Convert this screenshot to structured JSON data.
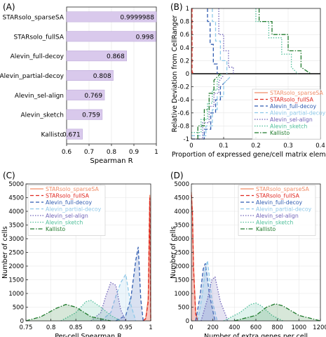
{
  "colors": {
    "bar_fill": "#d9c9ec",
    "bar_stroke": "#b8a4d6",
    "STARsolo_sparseSA": "#f08c68",
    "STARsolo_fullSA": "#e02820",
    "Alevin_full-decoy": "#2f5bb0",
    "Alevin_partial-decoy": "#8ec8e8",
    "Alevin_sel-align": "#6f62b8",
    "Alevin_sketch": "#4fbf9a",
    "Kallisto": "#1f7a2c"
  },
  "chart_data": [
    {
      "panel": "(A)",
      "type": "bar",
      "orientation": "horizontal",
      "categories": [
        "STARsolo_sparseSA",
        "STARsolo_fullSA",
        "Alevin_full-decoy",
        "Alevin_partial-decoy",
        "Alevin_sel-align",
        "Alevin_sketch",
        "Kallisto"
      ],
      "values": [
        0.9999988,
        0.998,
        0.868,
        0.808,
        0.769,
        0.759,
        0.671
      ],
      "value_labels": [
        "0.9999988",
        "0.998",
        "0.868",
        "0.808",
        "0.769",
        "0.759",
        "0.671"
      ],
      "xlabel": "Spearman R",
      "xlim": [
        0.6,
        1
      ],
      "xticks": [
        "0.6",
        "0.7",
        "0.8",
        "0.9",
        "1"
      ]
    },
    {
      "panel": "(B)",
      "type": "line",
      "xlabel": "Proportion of expressed gene/cell matrix elements",
      "ylabel": "Relative Deviation from CellRanger",
      "xlim": [
        0,
        0.4
      ],
      "ylim": [
        -1,
        1
      ],
      "xticks": [
        "0",
        "0.1",
        "0.2",
        "0.3",
        "0.4"
      ],
      "yticks": [
        "-1",
        "-0.8",
        "-0.6",
        "-0.4",
        "-0.2",
        "0",
        "0.2",
        "0.4",
        "0.6",
        "0.8",
        "1"
      ],
      "legend": [
        "STARsolo_sparseSA",
        "STARsolo_fullSA",
        "Alevin_full-decoy",
        "Alevin_partial-decoy",
        "Alevin_sel-align",
        "Alevin_sketch",
        "Kallisto"
      ],
      "legend_position": "bottom-right",
      "grid": true,
      "series": [
        {
          "name": "STARsolo_sparseSA",
          "style": "solid",
          "x": [
            0.001,
            0.001,
            0.003,
            0.003,
            0.004
          ],
          "y": [
            1,
            0.02,
            0.02,
            0,
            0
          ]
        },
        {
          "name": "STARsolo_fullSA",
          "style": "dashed",
          "x": [
            0.002,
            0.002,
            0.004,
            0.004
          ],
          "y": [
            1,
            0.02,
            0.02,
            0
          ]
        },
        {
          "name": "Alevin_full-decoy",
          "style": "dashed",
          "x": [
            0.05,
            0.05,
            0.058,
            0.058,
            0.068,
            0.068,
            0.08,
            0.08
          ],
          "y": [
            1,
            0.8,
            0.8,
            0.45,
            0.45,
            0.15,
            0.15,
            0
          ]
        },
        {
          "name": "Alevin_partial-decoy",
          "style": "dashed",
          "x": [
            0.065,
            0.065,
            0.075,
            0.075,
            0.09,
            0.09,
            0.11,
            0.11
          ],
          "y": [
            1,
            0.8,
            0.8,
            0.5,
            0.5,
            0.2,
            0.2,
            0
          ]
        },
        {
          "name": "Alevin_sel-align",
          "style": "dotted",
          "x": [
            0.085,
            0.085,
            0.1,
            0.1,
            0.115,
            0.115,
            0.13,
            0.13
          ],
          "y": [
            1,
            0.6,
            0.6,
            0.35,
            0.35,
            0.1,
            0.1,
            0
          ]
        },
        {
          "name": "Alevin_sketch",
          "style": "dotted",
          "x": [
            0.2,
            0.2,
            0.24,
            0.24,
            0.28,
            0.28,
            0.31,
            0.31,
            0.33
          ],
          "y": [
            1,
            0.8,
            0.8,
            0.55,
            0.55,
            0.3,
            0.3,
            0.1,
            0
          ]
        },
        {
          "name": "Kallisto",
          "style": "dashdot",
          "x": [
            0.21,
            0.21,
            0.25,
            0.25,
            0.3,
            0.3,
            0.34,
            0.34,
            0.37
          ],
          "y": [
            1,
            0.8,
            0.8,
            0.6,
            0.6,
            0.35,
            0.35,
            0.1,
            0
          ]
        },
        {
          "name": "Alevin_full-decoy",
          "style": "dashed",
          "x": [
            0,
            0.04,
            0.04,
            0.06,
            0.06,
            0.075,
            0.075,
            0.09,
            0.09,
            0.11
          ],
          "y": [
            -1,
            -1,
            -0.85,
            -0.85,
            -0.6,
            -0.6,
            -0.4,
            -0.4,
            -0.2,
            -0.1
          ]
        },
        {
          "name": "Alevin_partial-decoy",
          "style": "dashed",
          "x": [
            0,
            0.045,
            0.045,
            0.065,
            0.065,
            0.08,
            0.08,
            0.1,
            0.1,
            0.12
          ],
          "y": [
            -0.95,
            -0.95,
            -0.8,
            -0.8,
            -0.55,
            -0.55,
            -0.35,
            -0.35,
            -0.15,
            -0.05
          ]
        },
        {
          "name": "Alevin_sel-align",
          "style": "dotted",
          "x": [
            0,
            0.035,
            0.035,
            0.055,
            0.055,
            0.07,
            0.07,
            0.085,
            0.085,
            0.1
          ],
          "y": [
            -1,
            -1,
            -0.75,
            -0.75,
            -0.5,
            -0.5,
            -0.3,
            -0.3,
            -0.12,
            -0.02
          ]
        },
        {
          "name": "Alevin_sketch",
          "style": "dotted",
          "x": [
            0,
            0.03,
            0.03,
            0.05,
            0.05,
            0.065,
            0.065,
            0.08,
            0.08,
            0.095
          ],
          "y": [
            -0.9,
            -0.9,
            -0.7,
            -0.7,
            -0.45,
            -0.45,
            -0.25,
            -0.25,
            -0.1,
            0
          ]
        },
        {
          "name": "Kallisto",
          "style": "dashdot",
          "x": [
            0.02,
            0.02,
            0.04,
            0.04,
            0.055,
            0.055,
            0.07,
            0.07,
            0.09
          ],
          "y": [
            -1,
            -0.8,
            -0.8,
            -0.55,
            -0.55,
            -0.3,
            -0.3,
            -0.1,
            0
          ]
        }
      ]
    },
    {
      "panel": "(C)",
      "type": "area",
      "xlabel": "Per-cell Spearman R",
      "ylabel": "Number of cells",
      "xlim": [
        0.75,
        1
      ],
      "ylim": [
        0,
        5000
      ],
      "xticks": [
        "0.75",
        "0.8",
        "0.85",
        "0.9",
        "0.95",
        "1"
      ],
      "yticks": [
        "0",
        "500",
        "1000",
        "1500",
        "2000",
        "2500",
        "3000",
        "3500",
        "4000",
        "4500",
        "5000"
      ],
      "legend": [
        "STARsolo_sparseSA",
        "STARsolo_fullSA",
        "Alevin_full-decoy",
        "Alevin_partial-decoy",
        "Alevin_sel-align",
        "Alevin_sketch",
        "Kallisto"
      ],
      "legend_position": "top-left",
      "grid": true,
      "series": [
        {
          "name": "STARsolo_sparseSA",
          "style": "solid",
          "x": [
            0.985,
            0.99,
            0.995,
            0.998,
            1.0
          ],
          "y": [
            0,
            100,
            800,
            4600,
            0
          ]
        },
        {
          "name": "STARsolo_fullSA",
          "style": "dashed",
          "x": [
            0.985,
            0.99,
            0.995,
            0.998,
            1.0
          ],
          "y": [
            0,
            80,
            700,
            4500,
            0
          ]
        },
        {
          "name": "Alevin_full-decoy",
          "style": "dashed",
          "x": [
            0.93,
            0.95,
            0.96,
            0.97,
            0.975,
            0.98,
            0.985
          ],
          "y": [
            0,
            200,
            800,
            2200,
            2700,
            800,
            0
          ]
        },
        {
          "name": "Alevin_partial-decoy",
          "style": "dashed",
          "x": [
            0.9,
            0.92,
            0.93,
            0.94,
            0.95,
            0.96,
            0.97
          ],
          "y": [
            0,
            300,
            900,
            1400,
            1700,
            600,
            0
          ]
        },
        {
          "name": "Alevin_sel-align",
          "style": "dotted",
          "x": [
            0.88,
            0.9,
            0.91,
            0.92,
            0.93,
            0.94,
            0.95
          ],
          "y": [
            0,
            300,
            900,
            1400,
            1300,
            400,
            0
          ]
        },
        {
          "name": "Alevin_sketch",
          "style": "dotted",
          "x": [
            0.82,
            0.85,
            0.87,
            0.88,
            0.9,
            0.92,
            0.94
          ],
          "y": [
            0,
            300,
            700,
            750,
            500,
            200,
            0
          ]
        },
        {
          "name": "Kallisto",
          "style": "dashdot",
          "x": [
            0.75,
            0.78,
            0.81,
            0.83,
            0.85,
            0.88,
            0.92
          ],
          "y": [
            0,
            150,
            450,
            600,
            500,
            150,
            0
          ]
        }
      ]
    },
    {
      "panel": "(D)",
      "type": "area",
      "xlabel": "Number of extra genes per cell",
      "ylabel": "Number of cells",
      "xlim": [
        0,
        1200
      ],
      "ylim": [
        0,
        5000
      ],
      "xticks": [
        "0",
        "200",
        "400",
        "600",
        "800",
        "1000",
        "1200"
      ],
      "yticks": [
        "0",
        "500",
        "1000",
        "1500",
        "2000",
        "2500",
        "3000",
        "3500",
        "4000",
        "4500",
        "5000"
      ],
      "legend": [
        "STARsolo_sparseSA",
        "STARsolo_fullSA",
        "Alevin_full-decoy",
        "Alevin_partial-decoy",
        "Alevin_sel-align",
        "Alevin_sketch",
        "Kallisto"
      ],
      "legend_position": "top-right",
      "grid": true,
      "series": [
        {
          "name": "STARsolo_sparseSA",
          "style": "solid",
          "x": [
            0,
            10,
            20,
            40,
            60
          ],
          "y": [
            4700,
            4000,
            2000,
            300,
            0
          ]
        },
        {
          "name": "STARsolo_fullSA",
          "style": "dashed",
          "x": [
            0,
            10,
            20,
            40,
            60
          ],
          "y": [
            4600,
            3900,
            1900,
            250,
            0
          ]
        },
        {
          "name": "Alevin_full-decoy",
          "style": "dashed",
          "x": [
            40,
            80,
            110,
            130,
            170,
            220
          ],
          "y": [
            0,
            900,
            1900,
            2100,
            900,
            0
          ]
        },
        {
          "name": "Alevin_partial-decoy",
          "style": "dashed",
          "x": [
            60,
            100,
            130,
            150,
            190,
            240
          ],
          "y": [
            0,
            900,
            1900,
            2200,
            800,
            0
          ]
        },
        {
          "name": "Alevin_sel-align",
          "style": "dotted",
          "x": [
            90,
            150,
            190,
            220,
            270,
            340
          ],
          "y": [
            0,
            800,
            1500,
            1600,
            700,
            0
          ]
        },
        {
          "name": "Alevin_sketch",
          "style": "dotted",
          "x": [
            300,
            450,
            550,
            600,
            650,
            750,
            850
          ],
          "y": [
            0,
            300,
            600,
            650,
            550,
            200,
            0
          ]
        },
        {
          "name": "Kallisto",
          "style": "dashdot",
          "x": [
            400,
            600,
            700,
            780,
            850,
            1000,
            1200
          ],
          "y": [
            0,
            200,
            500,
            620,
            550,
            200,
            0
          ]
        }
      ]
    }
  ]
}
